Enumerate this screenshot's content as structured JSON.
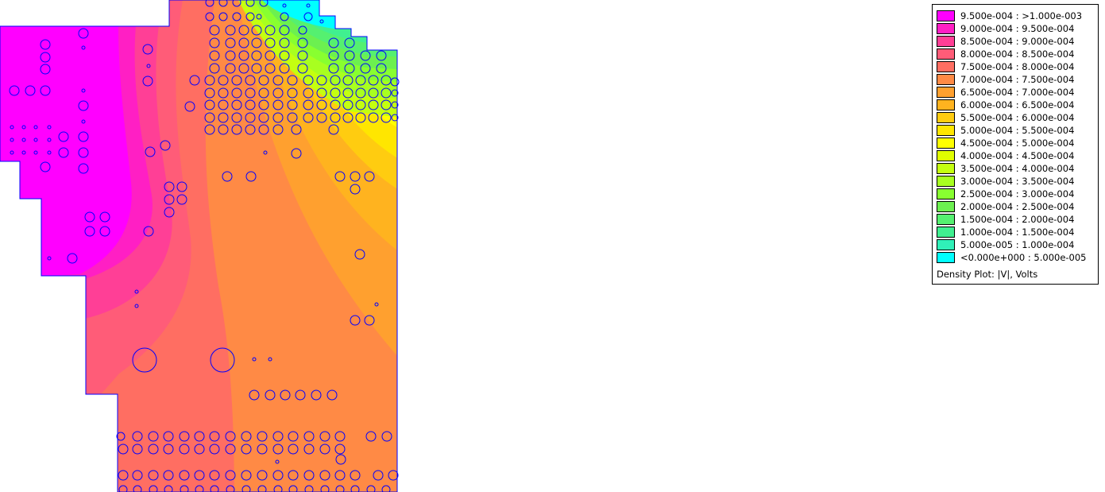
{
  "legend": {
    "caption": "Density Plot: |V|, Volts",
    "entries": [
      {
        "label": "9.500e-004 : >1.000e-003",
        "color": "#ff00ff"
      },
      {
        "label": "9.000e-004 : 9.500e-004",
        "color": "#ff1fc4"
      },
      {
        "label": "8.500e-004 : 9.000e-004",
        "color": "#ff3f96"
      },
      {
        "label": "8.000e-004 : 8.500e-004",
        "color": "#ff5c78"
      },
      {
        "label": "7.500e-004 : 8.000e-004",
        "color": "#ff6e62"
      },
      {
        "label": "7.000e-004 : 7.500e-004",
        "color": "#ff8a45"
      },
      {
        "label": "6.500e-004 : 7.000e-004",
        "color": "#ffa02f"
      },
      {
        "label": "6.000e-004 : 6.500e-004",
        "color": "#ffb31f"
      },
      {
        "label": "5.500e-004 : 6.000e-004",
        "color": "#ffcc10"
      },
      {
        "label": "5.000e-004 : 5.500e-004",
        "color": "#ffe600"
      },
      {
        "label": "4.500e-004 : 5.000e-004",
        "color": "#ffff00"
      },
      {
        "label": "4.000e-004 : 4.500e-004",
        "color": "#e0ff00"
      },
      {
        "label": "3.500e-004 : 4.000e-004",
        "color": "#c4ff10"
      },
      {
        "label": "3.000e-004 : 3.500e-004",
        "color": "#a8ff20"
      },
      {
        "label": "2.500e-004 : 3.000e-004",
        "color": "#88ff30"
      },
      {
        "label": "2.000e-004 : 2.500e-004",
        "color": "#6cf050"
      },
      {
        "label": "1.500e-004 : 2.000e-004",
        "color": "#55f070"
      },
      {
        "label": "1.000e-004 : 1.500e-004",
        "color": "#40f090"
      },
      {
        "label": "5.000e-005 : 1.000e-004",
        "color": "#30f0b8"
      },
      {
        "label": "<0.000e+000 : 5.000e-005",
        "color": "#00ffff"
      }
    ]
  },
  "plot": {
    "outline_color": "#0000ff"
  }
}
